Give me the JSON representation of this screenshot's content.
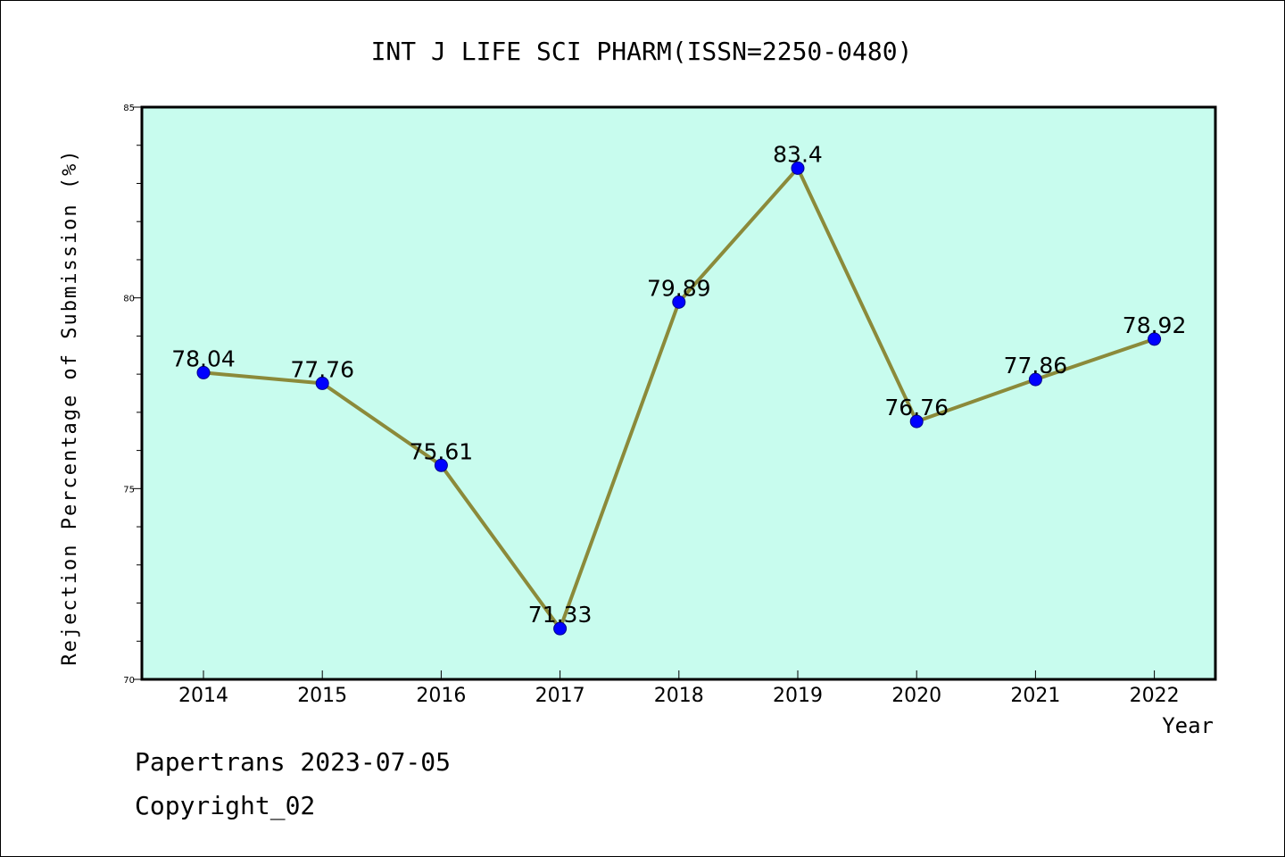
{
  "chart_data": {
    "type": "line",
    "title": "INT J LIFE SCI PHARM(ISSN=2250-0480)",
    "xlabel": "Year",
    "ylabel": "Rejection Percentage of Submission (%)",
    "categories": [
      "2014",
      "2015",
      "2016",
      "2017",
      "2018",
      "2019",
      "2020",
      "2021",
      "2022"
    ],
    "series": [
      {
        "values": [
          78.04,
          77.76,
          75.61,
          71.33,
          79.89,
          83.4,
          76.76,
          77.86,
          78.92
        ],
        "labels": [
          "78.04",
          "77.76",
          "75.61",
          "71.33",
          "79.89",
          "83.4",
          "76.76",
          "77.86",
          "78.92"
        ]
      }
    ],
    "ylim": [
      70,
      85
    ],
    "yticks": [
      "70",
      "75",
      "80",
      "85"
    ],
    "grid": false,
    "colors": {
      "plot_background": "#c8fcee",
      "line": "#8b8a3a",
      "marker": "#0000ff"
    }
  },
  "footer": {
    "line1": "Papertrans 2023-07-05",
    "line2": "Copyright_02"
  }
}
